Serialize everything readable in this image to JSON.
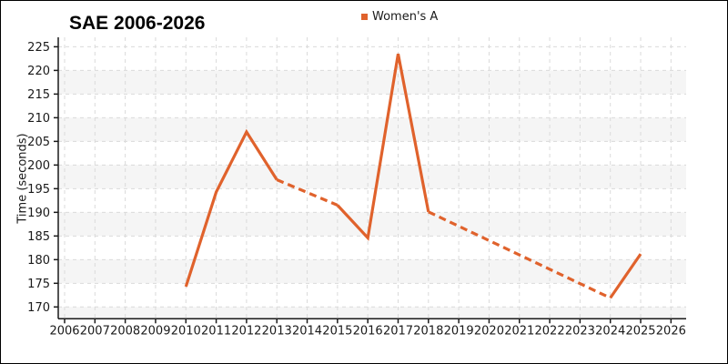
{
  "title": "SAE 2006-2026",
  "legend": {
    "label": "Women's A"
  },
  "y_axis": {
    "label": "Time (seconds)",
    "ticks": [
      170,
      175,
      180,
      185,
      190,
      195,
      200,
      205,
      210,
      215,
      220,
      225
    ]
  },
  "x_axis": {
    "ticks": [
      2006,
      2007,
      2008,
      2009,
      2010,
      2011,
      2012,
      2013,
      2014,
      2015,
      2016,
      2017,
      2018,
      2019,
      2020,
      2021,
      2022,
      2023,
      2024,
      2025,
      2026
    ]
  },
  "colors": {
    "series": "#e0622c",
    "grid": "#dadada",
    "band": "#f5f5f5",
    "spine": "#1a1a1a",
    "tick_text": "#1a1a1a"
  },
  "chart_data": {
    "type": "line",
    "title": "SAE 2006-2026",
    "xlabel": "",
    "ylabel": "Time (seconds)",
    "xlim": [
      2005.79,
      2026.5
    ],
    "ylim": [
      167.5,
      227.0
    ],
    "grid": "dashed-both-directions",
    "background": "alternating horizontal gray bands every 5 units (220-215, 210-205, 200-195, 190-185, 180-175, 170-bottom)",
    "legend_position": "top-center",
    "series": [
      {
        "name": "Women's A",
        "color": "#e0622c",
        "line_width": 3.2,
        "gap_style": "dashed line bridges missing years",
        "points": [
          {
            "x": 2010,
            "y": 174.3
          },
          {
            "x": 2011,
            "y": 194.3
          },
          {
            "x": 2012,
            "y": 207.0
          },
          {
            "x": 2013,
            "y": 196.9
          },
          {
            "x": 2014,
            "y": null
          },
          {
            "x": 2015,
            "y": 191.5
          },
          {
            "x": 2016,
            "y": 184.6
          },
          {
            "x": 2017,
            "y": 223.5
          },
          {
            "x": 2018,
            "y": 190.1
          },
          {
            "x": 2019,
            "y": null
          },
          {
            "x": 2020,
            "y": null
          },
          {
            "x": 2021,
            "y": null
          },
          {
            "x": 2022,
            "y": null
          },
          {
            "x": 2023,
            "y": null
          },
          {
            "x": 2024,
            "y": 171.9
          },
          {
            "x": 2025,
            "y": 181.2
          }
        ],
        "segments": [
          {
            "x0": 2010,
            "x1": 2013,
            "style": "solid"
          },
          {
            "x0": 2013,
            "x1": 2015,
            "style": "dashed"
          },
          {
            "x0": 2015,
            "x1": 2018,
            "style": "solid"
          },
          {
            "x0": 2018,
            "x1": 2024,
            "style": "dashed"
          },
          {
            "x0": 2024,
            "x1": 2025,
            "style": "solid"
          }
        ]
      }
    ]
  }
}
